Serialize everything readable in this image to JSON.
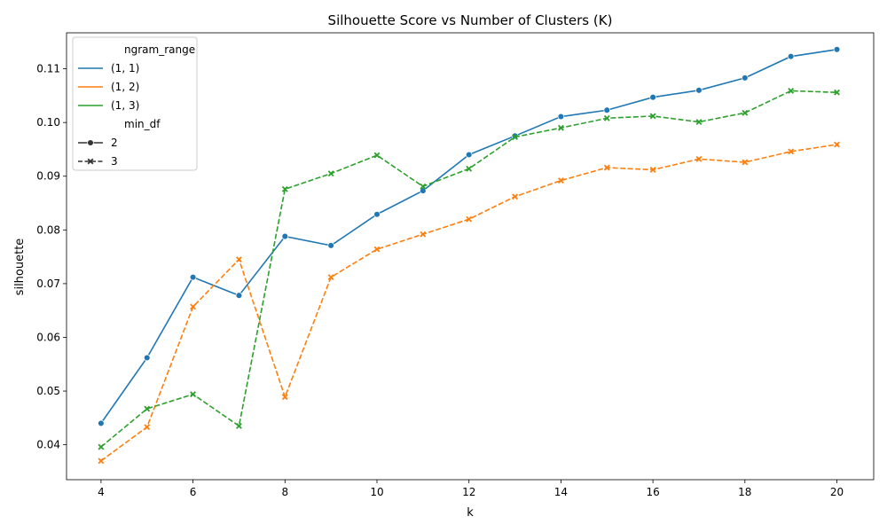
{
  "chart_data": {
    "type": "line",
    "title": "Silhouette Score vs Number of Clusters (K)",
    "xlabel": "k",
    "ylabel": "silhouette",
    "xlim": [
      3.25,
      20.8
    ],
    "ylim": [
      0.0335,
      0.1167
    ],
    "xticks": [
      4,
      6,
      8,
      10,
      12,
      14,
      16,
      18,
      20
    ],
    "xtick_labels": [
      "4",
      "6",
      "8",
      "10",
      "12",
      "14",
      "16",
      "18",
      "20"
    ],
    "yticks": [
      0.04,
      0.05,
      0.06,
      0.07,
      0.08,
      0.09,
      0.1,
      0.11
    ],
    "ytick_labels": [
      "0.04",
      "0.05",
      "0.06",
      "0.07",
      "0.08",
      "0.09",
      "0.10",
      "0.11"
    ],
    "grid": false,
    "legend_position": "top-left",
    "legend": {
      "hue_title": "ngram_range",
      "hue_entries": [
        {
          "label": "(1, 1)",
          "color": "#1f77b4"
        },
        {
          "label": "(1, 2)",
          "color": "#ff7f0e"
        },
        {
          "label": "(1, 3)",
          "color": "#2ca02c"
        }
      ],
      "style_title": "min_df",
      "style_entries": [
        {
          "label": "2",
          "marker": "circle",
          "dash": "solid"
        },
        {
          "label": "3",
          "marker": "x",
          "dash": "dashed"
        }
      ]
    },
    "series": [
      {
        "ngram_range": "(1, 1)",
        "min_df": "2",
        "color": "#1f77b4",
        "marker": "circle",
        "dash": "solid",
        "x": [
          4,
          5,
          6,
          7,
          8,
          9,
          10,
          11,
          12,
          13,
          14,
          15,
          16,
          17,
          18,
          19,
          20
        ],
        "y": [
          0.044,
          0.0562,
          0.0712,
          0.0678,
          0.0788,
          0.0771,
          0.0829,
          0.0873,
          0.094,
          0.0975,
          0.1011,
          0.1023,
          0.1047,
          0.106,
          0.1083,
          0.1123,
          0.1136
        ]
      },
      {
        "ngram_range": "(1, 2)",
        "min_df": "3",
        "color": "#ff7f0e",
        "marker": "x",
        "dash": "dashed",
        "x": [
          4,
          5,
          6,
          7,
          8,
          9,
          10,
          11,
          12,
          13,
          14,
          15,
          16,
          17,
          18,
          19,
          20
        ],
        "y": [
          0.037,
          0.0433,
          0.0657,
          0.0745,
          0.0489,
          0.0712,
          0.0764,
          0.0792,
          0.082,
          0.0862,
          0.0892,
          0.0916,
          0.0912,
          0.0932,
          0.0926,
          0.0946,
          0.0959
        ]
      },
      {
        "ngram_range": "(1, 3)",
        "min_df": "3",
        "color": "#2ca02c",
        "marker": "x",
        "dash": "dashed",
        "x": [
          4,
          5,
          6,
          7,
          8,
          9,
          10,
          11,
          12,
          13,
          14,
          15,
          16,
          17,
          18,
          19,
          20
        ],
        "y": [
          0.0396,
          0.0467,
          0.0494,
          0.0435,
          0.0876,
          0.0905,
          0.0939,
          0.0881,
          0.0914,
          0.0973,
          0.099,
          0.1008,
          0.1012,
          0.1001,
          0.1018,
          0.1059,
          0.1056
        ]
      }
    ]
  }
}
